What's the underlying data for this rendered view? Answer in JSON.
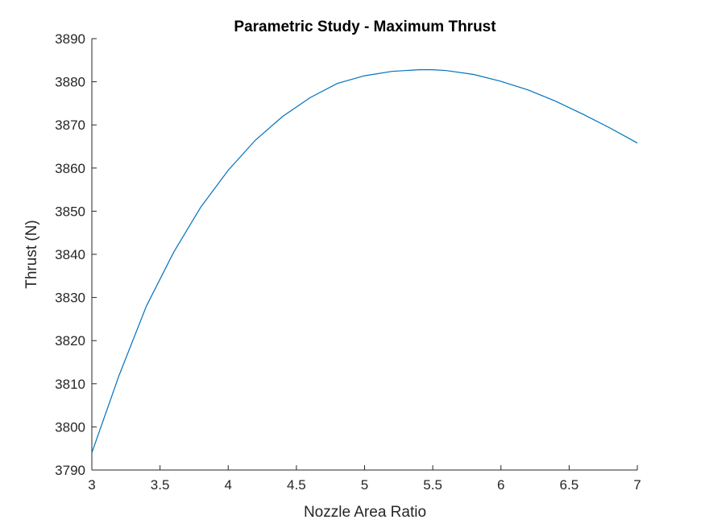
{
  "chart_data": {
    "type": "line",
    "title": "Parametric Study - Maximum Thrust",
    "xlabel": "Nozzle Area Ratio",
    "ylabel": "Thrust (N)",
    "xlim": [
      3,
      7
    ],
    "ylim": [
      3790,
      3890
    ],
    "grid": false,
    "x_ticks": [
      3,
      3.5,
      4,
      4.5,
      5,
      5.5,
      6,
      6.5,
      7
    ],
    "x_tick_labels": [
      "3",
      "3.5",
      "4",
      "4.5",
      "5",
      "5.5",
      "6",
      "6.5",
      "7"
    ],
    "y_ticks": [
      3790,
      3800,
      3810,
      3820,
      3830,
      3840,
      3850,
      3860,
      3870,
      3880,
      3890
    ],
    "y_tick_labels": [
      "3790",
      "3800",
      "3810",
      "3820",
      "3830",
      "3840",
      "3850",
      "3860",
      "3870",
      "3880",
      "3890"
    ],
    "line_color": "#0072BD",
    "series": [
      {
        "x": [
          3.0,
          3.2,
          3.4,
          3.6,
          3.8,
          4.0,
          4.2,
          4.4,
          4.6,
          4.8,
          5.0,
          5.2,
          5.4,
          5.5,
          5.6,
          5.8,
          6.0,
          6.2,
          6.4,
          6.6,
          6.8,
          7.0
        ],
        "y": [
          3794,
          3812,
          3828,
          3840.5,
          3851,
          3859.5,
          3866.5,
          3872,
          3876.3,
          3879.6,
          3881.4,
          3882.4,
          3882.8,
          3882.8,
          3882.6,
          3881.7,
          3880.1,
          3878.1,
          3875.5,
          3872.5,
          3869.3,
          3865.8
        ]
      }
    ]
  }
}
